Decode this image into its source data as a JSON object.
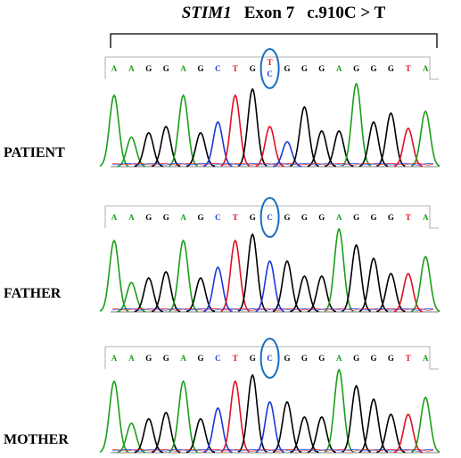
{
  "figure": {
    "title": {
      "gene": "STIM1",
      "exon": "Exon 7",
      "variant": "c.910C > T"
    },
    "base_colors": {
      "A": "#1a9e1a",
      "C": "#1a3adb",
      "G": "#000000",
      "T": "#e01020"
    },
    "highlight_color": "#1a6fbf",
    "panels": [
      {
        "label": "PATIENT",
        "sequence": [
          "A",
          "A",
          "G",
          "G",
          "A",
          "G",
          "C",
          "T",
          "G",
          "T/C",
          "G",
          "G",
          "G",
          "A",
          "G",
          "G",
          "G",
          "T",
          "A"
        ],
        "highlight_index": 9,
        "peaks": [
          {
            "base": "A",
            "h": 0.8
          },
          {
            "base": "A",
            "h": 0.33
          },
          {
            "base": "G",
            "h": 0.38
          },
          {
            "base": "G",
            "h": 0.45
          },
          {
            "base": "A",
            "h": 0.8
          },
          {
            "base": "G",
            "h": 0.38
          },
          {
            "base": "C",
            "h": 0.5
          },
          {
            "base": "T",
            "h": 0.8
          },
          {
            "base": "G",
            "h": 0.87
          },
          {
            "base": "T",
            "h": 0.45
          },
          {
            "base": "C",
            "h": 0.28
          },
          {
            "base": "G",
            "h": 0.67
          },
          {
            "base": "G",
            "h": 0.4
          },
          {
            "base": "G",
            "h": 0.4
          },
          {
            "base": "A",
            "h": 0.93
          },
          {
            "base": "G",
            "h": 0.5
          },
          {
            "base": "G",
            "h": 0.6
          },
          {
            "base": "T",
            "h": 0.43
          },
          {
            "base": "A",
            "h": 0.62
          }
        ]
      },
      {
        "label": "FATHER",
        "sequence": [
          "A",
          "A",
          "G",
          "G",
          "A",
          "G",
          "C",
          "T",
          "G",
          "C",
          "G",
          "G",
          "G",
          "A",
          "G",
          "G",
          "G",
          "T",
          "A"
        ],
        "highlight_index": 9,
        "peaks": [
          {
            "base": "A",
            "h": 0.8
          },
          {
            "base": "A",
            "h": 0.33
          },
          {
            "base": "G",
            "h": 0.38
          },
          {
            "base": "G",
            "h": 0.45
          },
          {
            "base": "A",
            "h": 0.8
          },
          {
            "base": "G",
            "h": 0.38
          },
          {
            "base": "C",
            "h": 0.5
          },
          {
            "base": "T",
            "h": 0.8
          },
          {
            "base": "G",
            "h": 0.87
          },
          {
            "base": "C",
            "h": 0.57
          },
          {
            "base": "G",
            "h": 0.57
          },
          {
            "base": "G",
            "h": 0.4
          },
          {
            "base": "G",
            "h": 0.4
          },
          {
            "base": "A",
            "h": 0.93
          },
          {
            "base": "G",
            "h": 0.75
          },
          {
            "base": "G",
            "h": 0.6
          },
          {
            "base": "G",
            "h": 0.43
          },
          {
            "base": "T",
            "h": 0.43
          },
          {
            "base": "A",
            "h": 0.62
          }
        ]
      },
      {
        "label": "MOTHER",
        "sequence": [
          "A",
          "A",
          "G",
          "G",
          "A",
          "G",
          "C",
          "T",
          "G",
          "C",
          "G",
          "G",
          "G",
          "A",
          "G",
          "G",
          "G",
          "T",
          "A"
        ],
        "highlight_index": 9,
        "peaks": [
          {
            "base": "A",
            "h": 0.8
          },
          {
            "base": "A",
            "h": 0.33
          },
          {
            "base": "G",
            "h": 0.38
          },
          {
            "base": "G",
            "h": 0.45
          },
          {
            "base": "A",
            "h": 0.8
          },
          {
            "base": "G",
            "h": 0.38
          },
          {
            "base": "C",
            "h": 0.5
          },
          {
            "base": "T",
            "h": 0.8
          },
          {
            "base": "G",
            "h": 0.87
          },
          {
            "base": "C",
            "h": 0.57
          },
          {
            "base": "G",
            "h": 0.57
          },
          {
            "base": "G",
            "h": 0.4
          },
          {
            "base": "G",
            "h": 0.4
          },
          {
            "base": "A",
            "h": 0.93
          },
          {
            "base": "G",
            "h": 0.75
          },
          {
            "base": "G",
            "h": 0.6
          },
          {
            "base": "G",
            "h": 0.43
          },
          {
            "base": "T",
            "h": 0.43
          },
          {
            "base": "A",
            "h": 0.62
          }
        ]
      }
    ]
  }
}
